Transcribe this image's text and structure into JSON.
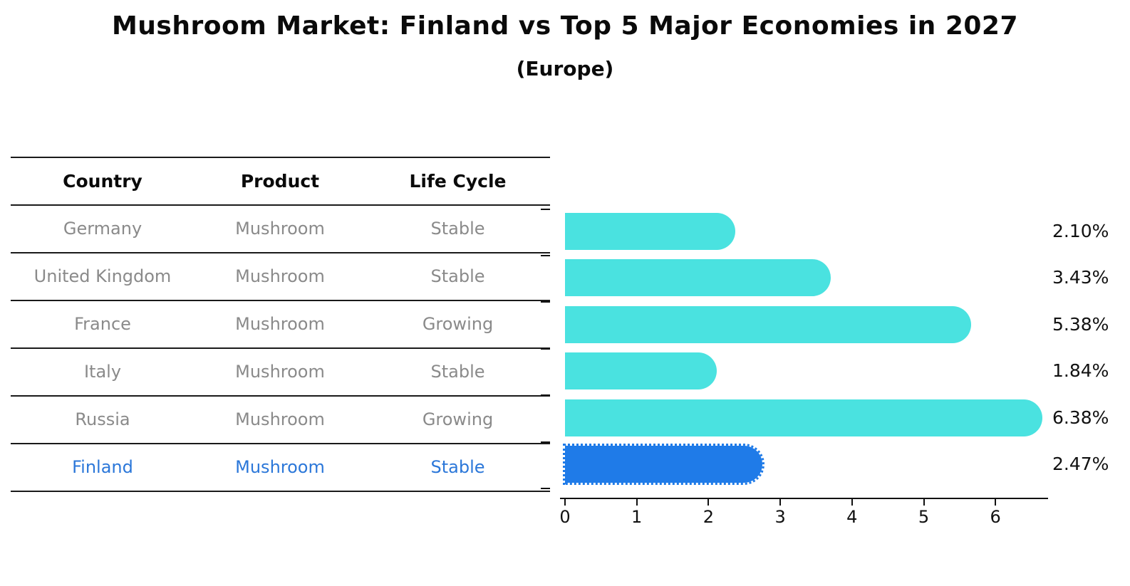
{
  "title": "Mushroom Market: Finland vs Top 5 Major Economies in 2027",
  "subtitle": "(Europe)",
  "table": {
    "headers": [
      "Country",
      "Product",
      "Life Cycle"
    ],
    "rows": [
      {
        "country": "Germany",
        "product": "Mushroom",
        "life_cycle": "Stable",
        "highlight": false
      },
      {
        "country": "United Kingdom",
        "product": "Mushroom",
        "life_cycle": "Stable",
        "highlight": false
      },
      {
        "country": "France",
        "product": "Mushroom",
        "life_cycle": "Growing",
        "highlight": false
      },
      {
        "country": "Italy",
        "product": "Mushroom",
        "life_cycle": "Stable",
        "highlight": false
      },
      {
        "country": "Russia",
        "product": "Mushroom",
        "life_cycle": "Growing",
        "highlight": false
      },
      {
        "country": "Finland",
        "product": "Mushroom",
        "life_cycle": "Stable",
        "highlight": true
      }
    ]
  },
  "chart_data": {
    "type": "bar",
    "orientation": "horizontal",
    "title": "Mushroom Market: Finland vs Top 5 Major Economies in 2027",
    "subtitle": "(Europe)",
    "categories": [
      "Germany",
      "United Kingdom",
      "France",
      "Italy",
      "Russia",
      "Finland"
    ],
    "values": [
      2.1,
      3.43,
      5.38,
      1.84,
      6.38,
      2.47
    ],
    "value_labels": [
      "2.10%",
      "3.43%",
      "5.38%",
      "1.84%",
      "6.38%",
      "2.47%"
    ],
    "value_suffix": "%",
    "x_ticks": [
      0,
      1,
      2,
      3,
      4,
      5,
      6
    ],
    "xlim": [
      0,
      6.73
    ],
    "grid": false,
    "legend": "none",
    "bar_color": "#4ae2e0",
    "highlight_color": "#1f7be8",
    "highlight_index": 5,
    "highlight_style": "dotted-outline"
  },
  "colors": {
    "bar_cyan": "#4ae2e0",
    "bar_blue": "#1f7be8",
    "highlight_text_blue": "#2b77d9",
    "row_text_gray": "#8a8a8a",
    "header_text": "#0a0a0a",
    "axis_black": "#111111"
  }
}
